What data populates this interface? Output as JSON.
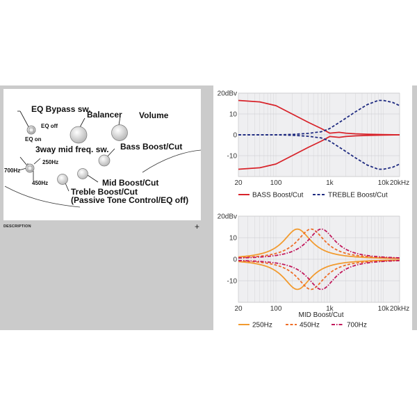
{
  "knob_panel": {
    "labels": {
      "eq_bypass": "EQ Bypass sw.",
      "eq_off": "EQ off",
      "eq_on": "EQ on",
      "balancer": "Balancer",
      "volume": "Volume",
      "mid_freq_sw": "3way mid freq. sw.",
      "bass": "Bass Boost/Cut",
      "f250": "250Hz",
      "f700": "700Hz",
      "f450": "450Hz",
      "mid": "Mid Boost/Cut",
      "treble": "Treble Boost/Cut",
      "passive": "(Passive Tone Control/EQ off)"
    }
  },
  "description": {
    "label": "DESCRIPTION",
    "expand": "+"
  },
  "chart_data": [
    {
      "type": "line",
      "xlabel": "",
      "ylabel": "",
      "x_scale": "log",
      "xlim": [
        20,
        20000
      ],
      "ylim": [
        -20,
        20
      ],
      "grid": true,
      "y_ticks": [
        "20dBv",
        "10",
        "0",
        "-10"
      ],
      "x_ticks": [
        "20",
        "100",
        "1k",
        "10k",
        "20kHz"
      ],
      "series": [
        {
          "name": "BASS Boost/Cut",
          "style": "solid",
          "color": "#d8232a",
          "x": [
            20,
            50,
            100,
            200,
            400,
            700,
            1000,
            1500,
            2000,
            3000,
            5000,
            10000,
            20000
          ],
          "y": [
            16.5,
            15.8,
            14,
            10,
            6,
            3,
            0.8,
            1.2,
            0.8,
            0.5,
            0.3,
            0.1,
            0
          ],
          "mirror": [
            -16.5,
            -15.8,
            -14,
            -10,
            -6,
            -3,
            -0.8,
            -1.2,
            -0.8,
            -0.5,
            -0.3,
            -0.1,
            0
          ]
        },
        {
          "name": "TREBLE Boost/Cut",
          "style": "dashed",
          "color": "#1e2a80",
          "x": [
            20,
            100,
            200,
            400,
            700,
            1000,
            2000,
            3000,
            5000,
            8000,
            10000,
            15000,
            20000
          ],
          "y": [
            0,
            0,
            0.2,
            0.7,
            1.5,
            3,
            8,
            11,
            14.5,
            16.5,
            16.5,
            15.5,
            14
          ],
          "mirror": [
            0,
            0,
            -0.2,
            -0.7,
            -1.5,
            -3,
            -8,
            -11,
            -14.5,
            -16.5,
            -16.5,
            -15.5,
            -14
          ]
        }
      ],
      "legend": "bottom"
    },
    {
      "type": "line",
      "xlabel": "MID Boost/Cut",
      "ylabel": "",
      "x_scale": "log",
      "xlim": [
        20,
        20000
      ],
      "ylim": [
        -20,
        20
      ],
      "grid": true,
      "y_ticks": [
        "20dBv",
        "10",
        "0",
        "-10"
      ],
      "x_ticks": [
        "20",
        "100",
        "1k",
        "10k",
        "20kHz"
      ],
      "series": [
        {
          "name": "250Hz",
          "style": "solid",
          "color": "#f29b2f",
          "center": 250,
          "peak": 14
        },
        {
          "name": "450Hz",
          "style": "dashed",
          "color": "#ee6d26",
          "center": 450,
          "peak": 14
        },
        {
          "name": "700Hz",
          "style": "dashdot",
          "color": "#c2185b",
          "center": 700,
          "peak": 14
        }
      ],
      "legend": "bottom"
    }
  ]
}
